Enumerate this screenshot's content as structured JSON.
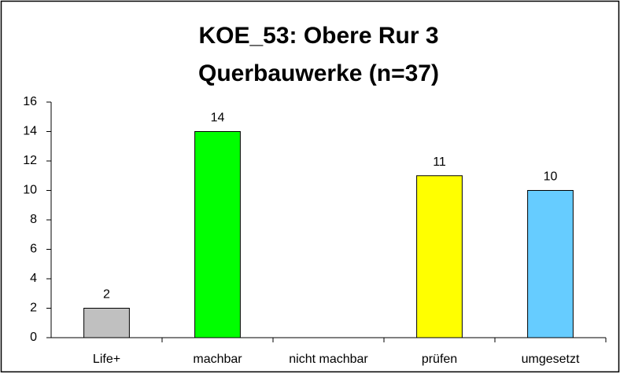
{
  "chart_data": {
    "type": "bar",
    "title": [
      "KOE_53: Obere Rur 3",
      "Querbauwerke (n=37)"
    ],
    "categories": [
      "Life+",
      "machbar",
      "nicht machbar",
      "prüfen",
      "umgesetzt"
    ],
    "values": [
      2,
      14,
      null,
      11,
      10
    ],
    "colors": [
      "#c0c0c0",
      "#00ff00",
      null,
      "#ffff00",
      "#66ccff"
    ],
    "ylim": [
      0,
      16
    ],
    "yticks": [
      0,
      2,
      4,
      6,
      8,
      10,
      12,
      14,
      16
    ],
    "grid": false
  }
}
